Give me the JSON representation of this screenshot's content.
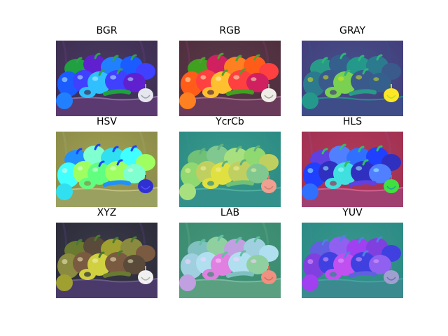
{
  "figure": {
    "background": "#ffffff"
  },
  "panels": [
    {
      "title": "BGR",
      "icon": "peppers-photo-bgr",
      "palette": {
        "bg": "#3c2d50",
        "cloth": "#4a3a62",
        "table": "#5a3a70",
        "tableEdge": "#8a6aa0",
        "pepperA": "#1a5cff",
        "pepperB": "#2080ff",
        "pepperC": "#30c0ff",
        "pepperD": "#20a040",
        "pepperE": "#4040ff",
        "pepperF": "#6020d0",
        "stem": "#30a050",
        "garlic": "#e6e6ee",
        "garlicShade": "#a0a0b0",
        "highlight": "#c0f0ff"
      }
    },
    {
      "title": "RGB",
      "icon": "peppers-photo-rgb",
      "palette": {
        "bg": "#4e2d3c",
        "cloth": "#5a3a4a",
        "table": "#6a3a5a",
        "tableEdge": "#a06a8a",
        "pepperA": "#ff5c1a",
        "pepperB": "#ff8020",
        "pepperC": "#ffc030",
        "pepperD": "#40a020",
        "pepperE": "#ff4040",
        "pepperF": "#d02060",
        "stem": "#50a030",
        "garlic": "#eeeee6",
        "garlicShade": "#b0a0a0",
        "highlight": "#fff0c0"
      }
    },
    {
      "title": "GRAY",
      "icon": "peppers-photo-gray",
      "palette": {
        "bg": "#433d7a",
        "cloth": "#44508a",
        "table": "#3e4c88",
        "tableEdge": "#2c8a8c",
        "pepperA": "#2c7a8e",
        "pepperB": "#23988b",
        "pepperC": "#7ad151",
        "pepperD": "#2a9a88",
        "pepperE": "#3b5a8c",
        "pepperF": "#355f8d",
        "stem": "#2fb47c",
        "garlic": "#fde725",
        "garlicShade": "#b8de29",
        "highlight": "#d8e219"
      }
    },
    {
      "title": "HSV",
      "icon": "peppers-photo-hsv",
      "palette": {
        "bg": "#8a8a4a",
        "cloth": "#a0a050",
        "table": "#9aa060",
        "tableEdge": "#c0c080",
        "pepperA": "#40ffff",
        "pepperB": "#30e0f0",
        "pepperC": "#60ff80",
        "pepperD": "#2090ff",
        "pepperE": "#a0ff60",
        "pepperF": "#80ffd0",
        "stem": "#2040ff",
        "garlic": "#3030d0",
        "garlicShade": "#5050ff",
        "highlight": "#e0ffe0"
      }
    },
    {
      "title": "YcrCb",
      "icon": "peppers-photo-ycrcb",
      "palette": {
        "bg": "#2a8a84",
        "cloth": "#3a9a8a",
        "table": "#34908a",
        "tableEdge": "#50b0a0",
        "pepperA": "#90d870",
        "pepperB": "#a8e080",
        "pepperC": "#e0e040",
        "pepperD": "#70c078",
        "pepperE": "#c0d060",
        "pepperF": "#80c890",
        "stem": "#60b080",
        "garlic": "#f0a090",
        "garlicShade": "#d08070",
        "highlight": "#f0f0a0"
      }
    },
    {
      "title": "HLS",
      "icon": "peppers-photo-hls",
      "palette": {
        "bg": "#a03050",
        "cloth": "#b03a5a",
        "table": "#a04070",
        "tableEdge": "#d06090",
        "pepperA": "#2040ff",
        "pepperB": "#3070ff",
        "pepperC": "#40e0e0",
        "pepperD": "#6040e0",
        "pepperE": "#3030c0",
        "pepperF": "#5080ff",
        "stem": "#30c060",
        "garlic": "#40e040",
        "garlicShade": "#20a0a0",
        "highlight": "#a0ffff"
      }
    },
    {
      "title": "XYZ",
      "icon": "peppers-photo-xyz",
      "palette": {
        "bg": "#2a2a38",
        "cloth": "#3a3a4a",
        "table": "#4a3a6a",
        "tableEdge": "#6a5a8a",
        "pepperA": "#8a8a40",
        "pepperB": "#a0a030",
        "pepperC": "#d0d040",
        "pepperD": "#6a7a30",
        "pepperE": "#7a5a40",
        "pepperF": "#5a4a3a",
        "stem": "#4a7a30",
        "garlic": "#f0f0f0",
        "garlicShade": "#b0b0b0",
        "highlight": "#f0f0c0"
      }
    },
    {
      "title": "LAB",
      "icon": "peppers-photo-lab",
      "palette": {
        "bg": "#3a8a70",
        "cloth": "#44967a",
        "table": "#5aa080",
        "tableEdge": "#7ab8a0",
        "pepperA": "#a0d0e0",
        "pepperB": "#c0a0e0",
        "pepperC": "#e080e0",
        "pepperD": "#80c0c0",
        "pepperE": "#b0e0f0",
        "pepperF": "#90d0a0",
        "stem": "#60c0a0",
        "garlic": "#f09080",
        "garlicShade": "#d07060",
        "highlight": "#ffd0ff"
      }
    },
    {
      "title": "YUV",
      "icon": "peppers-photo-yuv",
      "palette": {
        "bg": "#2a8a84",
        "cloth": "#38968c",
        "table": "#3a8a90",
        "tableEdge": "#4aa0a0",
        "pepperA": "#8040e0",
        "pepperB": "#a040f0",
        "pepperC": "#c050f0",
        "pepperD": "#6060e0",
        "pepperE": "#4040e0",
        "pepperF": "#9060f0",
        "stem": "#5080e0",
        "garlic": "#a0a0d0",
        "garlicShade": "#7070b0",
        "highlight": "#e0a0ff"
      }
    }
  ]
}
